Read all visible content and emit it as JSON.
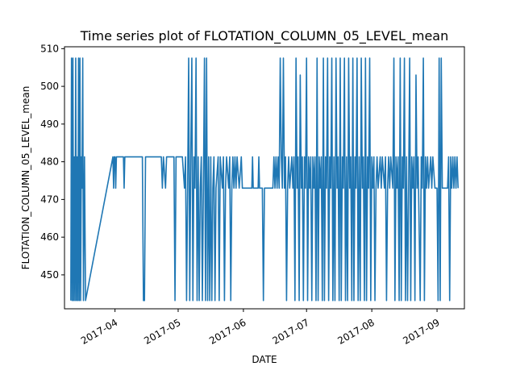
{
  "chart_data": {
    "type": "line",
    "title": "Time series plot of FLOTATION_COLUMN_05_LEVEL_mean",
    "xlabel": "DATE",
    "ylabel": "FLOTATION_COLUMN_05_LEVEL_mean",
    "xlim": [
      "2017-03-08",
      "2017-09-14"
    ],
    "ylim": [
      441,
      510.5
    ],
    "x_tick_labels": [
      "2017-04",
      "2017-05",
      "2017-06",
      "2017-07",
      "2017-08",
      "2017-09"
    ],
    "x_tick_dates": [
      "2017-04-01",
      "2017-05-01",
      "2017-06-01",
      "2017-07-01",
      "2017-08-01",
      "2017-09-01"
    ],
    "y_tick_values": [
      450,
      460,
      470,
      480,
      490,
      500,
      510
    ],
    "grid": false,
    "series": [
      {
        "color": "#1f77b4",
        "points": [
          [
            "2017-03-11",
            443.2
          ],
          [
            "2017-03-11",
            507.5
          ],
          [
            "2017-03-11",
            443.2
          ],
          [
            "2017-03-12",
            507.5
          ],
          [
            "2017-03-12",
            443.2
          ],
          [
            "2017-03-12",
            481.3
          ],
          [
            "2017-03-13",
            443.2
          ],
          [
            "2017-03-13",
            507.5
          ],
          [
            "2017-03-13",
            443.2
          ],
          [
            "2017-03-14",
            481.3
          ],
          [
            "2017-03-14",
            443.2
          ],
          [
            "2017-03-14",
            507.5
          ],
          [
            "2017-03-15",
            443.2
          ],
          [
            "2017-03-15",
            507.5
          ],
          [
            "2017-03-15",
            443.2
          ],
          [
            "2017-03-16",
            481.3
          ],
          [
            "2017-03-16",
            473.0
          ],
          [
            "2017-03-16",
            507.5
          ],
          [
            "2017-03-17",
            443.2
          ],
          [
            "2017-03-17",
            481.3
          ],
          [
            "2017-03-18",
            443.2
          ],
          [
            "2017-03-31",
            481.3
          ],
          [
            "2017-03-31",
            473.0
          ],
          [
            "2017-03-31",
            481.3
          ],
          [
            "2017-04-01",
            481.3
          ],
          [
            "2017-04-01",
            473.0
          ],
          [
            "2017-04-01",
            481.3
          ],
          [
            "2017-04-05",
            481.3
          ],
          [
            "2017-04-05",
            473.0
          ],
          [
            "2017-04-05",
            481.3
          ],
          [
            "2017-04-14",
            481.3
          ],
          [
            "2017-04-14",
            443.2
          ],
          [
            "2017-04-15",
            443.2
          ],
          [
            "2017-04-15",
            481.3
          ],
          [
            "2017-04-23",
            481.3
          ],
          [
            "2017-04-23",
            473.0
          ],
          [
            "2017-04-24",
            481.3
          ],
          [
            "2017-04-25",
            473.0
          ],
          [
            "2017-04-25",
            481.3
          ],
          [
            "2017-04-29",
            481.3
          ],
          [
            "2017-04-29",
            443.2
          ],
          [
            "2017-04-30",
            481.3
          ],
          [
            "2017-05-03",
            481.3
          ],
          [
            "2017-05-04",
            473.0
          ],
          [
            "2017-05-04",
            481.3
          ],
          [
            "2017-05-05",
            443.2
          ],
          [
            "2017-05-05",
            473.0
          ],
          [
            "2017-05-06",
            507.5
          ],
          [
            "2017-05-06",
            443.2
          ],
          [
            "2017-05-07",
            481.3
          ],
          [
            "2017-05-07",
            507.5
          ],
          [
            "2017-05-08",
            443.2
          ],
          [
            "2017-05-08",
            481.3
          ],
          [
            "2017-05-09",
            473.0
          ],
          [
            "2017-05-09",
            507.5
          ],
          [
            "2017-05-10",
            443.2
          ],
          [
            "2017-05-10",
            481.3
          ],
          [
            "2017-05-11",
            443.2
          ],
          [
            "2017-05-11",
            473.0
          ],
          [
            "2017-05-12",
            481.3
          ],
          [
            "2017-05-12",
            443.2
          ],
          [
            "2017-05-13",
            473.0
          ],
          [
            "2017-05-13",
            507.5
          ],
          [
            "2017-05-14",
            443.2
          ],
          [
            "2017-05-14",
            507.5
          ],
          [
            "2017-05-15",
            443.2
          ],
          [
            "2017-05-15",
            481.3
          ],
          [
            "2017-05-16",
            443.2
          ],
          [
            "2017-05-16",
            481.3
          ],
          [
            "2017-05-17",
            443.2
          ],
          [
            "2017-05-17",
            473.0
          ],
          [
            "2017-05-18",
            481.3
          ],
          [
            "2017-05-18",
            443.2
          ],
          [
            "2017-05-19",
            473.0
          ],
          [
            "2017-05-20",
            481.3
          ],
          [
            "2017-05-20",
            443.2
          ],
          [
            "2017-05-21",
            481.3
          ],
          [
            "2017-05-22",
            473.0
          ],
          [
            "2017-05-22",
            481.3
          ],
          [
            "2017-05-23",
            443.2
          ],
          [
            "2017-05-23",
            473.0
          ],
          [
            "2017-05-24",
            481.3
          ],
          [
            "2017-05-25",
            473.0
          ],
          [
            "2017-05-25",
            481.3
          ],
          [
            "2017-05-26",
            443.2
          ],
          [
            "2017-05-26",
            473.0
          ],
          [
            "2017-05-27",
            481.3
          ],
          [
            "2017-05-27",
            473.0
          ],
          [
            "2017-05-28",
            481.3
          ],
          [
            "2017-05-28",
            473.0
          ],
          [
            "2017-05-29",
            481.3
          ],
          [
            "2017-05-30",
            473.0
          ],
          [
            "2017-05-31",
            481.3
          ],
          [
            "2017-05-31",
            473.0
          ],
          [
            "2017-06-05",
            473.0
          ],
          [
            "2017-06-05",
            481.3
          ],
          [
            "2017-06-05",
            473.0
          ],
          [
            "2017-06-08",
            473.0
          ],
          [
            "2017-06-08",
            481.3
          ],
          [
            "2017-06-08",
            473.0
          ],
          [
            "2017-06-10",
            473.0
          ],
          [
            "2017-06-10",
            443.2
          ],
          [
            "2017-06-11",
            473.0
          ],
          [
            "2017-06-15",
            473.0
          ],
          [
            "2017-06-15",
            481.3
          ],
          [
            "2017-06-16",
            473.0
          ],
          [
            "2017-06-16",
            481.3
          ],
          [
            "2017-06-17",
            473.0
          ],
          [
            "2017-06-17",
            481.3
          ],
          [
            "2017-06-18",
            473.0
          ],
          [
            "2017-06-18",
            507.5
          ],
          [
            "2017-06-19",
            481.3
          ],
          [
            "2017-06-19",
            473.0
          ],
          [
            "2017-06-20",
            507.5
          ],
          [
            "2017-06-20",
            473.0
          ],
          [
            "2017-06-21",
            481.3
          ],
          [
            "2017-06-21",
            443.2
          ],
          [
            "2017-06-22",
            473.0
          ],
          [
            "2017-06-22",
            481.3
          ],
          [
            "2017-06-23",
            473.0
          ],
          [
            "2017-06-24",
            481.3
          ],
          [
            "2017-06-24",
            473.0
          ],
          [
            "2017-06-25",
            481.3
          ],
          [
            "2017-06-25",
            443.2
          ],
          [
            "2017-06-26",
            507.5
          ],
          [
            "2017-06-26",
            473.0
          ],
          [
            "2017-06-27",
            481.3
          ],
          [
            "2017-06-27",
            443.2
          ],
          [
            "2017-06-28",
            503.0
          ],
          [
            "2017-06-28",
            473.0
          ],
          [
            "2017-06-29",
            481.3
          ],
          [
            "2017-06-29",
            443.2
          ],
          [
            "2017-06-30",
            481.3
          ],
          [
            "2017-06-30",
            473.0
          ],
          [
            "2017-07-01",
            507.5
          ],
          [
            "2017-07-01",
            443.2
          ],
          [
            "2017-07-02",
            481.3
          ],
          [
            "2017-07-02",
            473.0
          ],
          [
            "2017-07-03",
            481.3
          ],
          [
            "2017-07-03",
            443.2
          ],
          [
            "2017-07-04",
            481.3
          ],
          [
            "2017-07-04",
            473.0
          ],
          [
            "2017-07-05",
            481.3
          ],
          [
            "2017-07-05",
            443.2
          ],
          [
            "2017-07-06",
            507.5
          ],
          [
            "2017-07-06",
            443.2
          ],
          [
            "2017-07-07",
            481.3
          ],
          [
            "2017-07-07",
            473.0
          ],
          [
            "2017-07-08",
            481.3
          ],
          [
            "2017-07-08",
            443.2
          ],
          [
            "2017-07-09",
            507.5
          ],
          [
            "2017-07-09",
            443.2
          ],
          [
            "2017-07-10",
            481.3
          ],
          [
            "2017-07-10",
            473.0
          ],
          [
            "2017-07-11",
            507.5
          ],
          [
            "2017-07-11",
            443.2
          ],
          [
            "2017-07-12",
            481.3
          ],
          [
            "2017-07-12",
            473.0
          ],
          [
            "2017-07-13",
            507.5
          ],
          [
            "2017-07-13",
            443.2
          ],
          [
            "2017-07-14",
            481.3
          ],
          [
            "2017-07-14",
            443.2
          ],
          [
            "2017-07-15",
            507.5
          ],
          [
            "2017-07-15",
            473.0
          ],
          [
            "2017-07-16",
            481.3
          ],
          [
            "2017-07-16",
            443.2
          ],
          [
            "2017-07-17",
            507.5
          ],
          [
            "2017-07-17",
            443.2
          ],
          [
            "2017-07-18",
            481.3
          ],
          [
            "2017-07-18",
            473.0
          ],
          [
            "2017-07-19",
            507.5
          ],
          [
            "2017-07-19",
            443.2
          ],
          [
            "2017-07-20",
            481.3
          ],
          [
            "2017-07-20",
            443.2
          ],
          [
            "2017-07-21",
            507.5
          ],
          [
            "2017-07-21",
            473.0
          ],
          [
            "2017-07-22",
            481.3
          ],
          [
            "2017-07-22",
            443.2
          ],
          [
            "2017-07-23",
            507.5
          ],
          [
            "2017-07-23",
            443.2
          ],
          [
            "2017-07-24",
            481.3
          ],
          [
            "2017-07-24",
            473.0
          ],
          [
            "2017-07-25",
            507.5
          ],
          [
            "2017-07-25",
            443.2
          ],
          [
            "2017-07-26",
            481.3
          ],
          [
            "2017-07-26",
            443.2
          ],
          [
            "2017-07-27",
            507.5
          ],
          [
            "2017-07-27",
            473.0
          ],
          [
            "2017-07-28",
            481.3
          ],
          [
            "2017-07-28",
            443.2
          ],
          [
            "2017-07-29",
            507.5
          ],
          [
            "2017-07-29",
            443.2
          ],
          [
            "2017-07-30",
            481.3
          ],
          [
            "2017-07-30",
            473.0
          ],
          [
            "2017-07-31",
            507.5
          ],
          [
            "2017-07-31",
            443.2
          ],
          [
            "2017-08-01",
            481.3
          ],
          [
            "2017-08-01",
            473.0
          ],
          [
            "2017-08-02",
            481.3
          ],
          [
            "2017-08-02",
            443.2
          ],
          [
            "2017-08-03",
            473.0
          ],
          [
            "2017-08-03",
            481.3
          ],
          [
            "2017-08-04",
            473.0
          ],
          [
            "2017-08-05",
            481.3
          ],
          [
            "2017-08-05",
            473.0
          ],
          [
            "2017-08-06",
            481.3
          ],
          [
            "2017-08-07",
            473.0
          ],
          [
            "2017-08-07",
            481.3
          ],
          [
            "2017-08-08",
            443.2
          ],
          [
            "2017-08-08",
            473.0
          ],
          [
            "2017-08-09",
            481.3
          ],
          [
            "2017-08-09",
            473.0
          ],
          [
            "2017-08-10",
            481.3
          ],
          [
            "2017-08-11",
            473.0
          ],
          [
            "2017-08-11",
            507.5
          ],
          [
            "2017-08-12",
            443.2
          ],
          [
            "2017-08-12",
            481.3
          ],
          [
            "2017-08-13",
            473.0
          ],
          [
            "2017-08-13",
            481.3
          ],
          [
            "2017-08-14",
            443.2
          ],
          [
            "2017-08-14",
            507.5
          ],
          [
            "2017-08-15",
            443.2
          ],
          [
            "2017-08-15",
            481.3
          ],
          [
            "2017-08-16",
            473.0
          ],
          [
            "2017-08-16",
            507.5
          ],
          [
            "2017-08-17",
            443.2
          ],
          [
            "2017-08-17",
            481.3
          ],
          [
            "2017-08-18",
            443.2
          ],
          [
            "2017-08-18",
            473.0
          ],
          [
            "2017-08-19",
            507.5
          ],
          [
            "2017-08-19",
            443.2
          ],
          [
            "2017-08-20",
            481.3
          ],
          [
            "2017-08-20",
            473.0
          ],
          [
            "2017-08-21",
            481.3
          ],
          [
            "2017-08-21",
            443.2
          ],
          [
            "2017-08-22",
            503.0
          ],
          [
            "2017-08-22",
            473.0
          ],
          [
            "2017-08-23",
            481.3
          ],
          [
            "2017-08-24",
            443.2
          ],
          [
            "2017-08-24",
            481.3
          ],
          [
            "2017-08-25",
            473.0
          ],
          [
            "2017-08-25",
            507.5
          ],
          [
            "2017-08-26",
            443.2
          ],
          [
            "2017-08-26",
            481.3
          ],
          [
            "2017-08-27",
            473.0
          ],
          [
            "2017-08-27",
            481.3
          ],
          [
            "2017-08-28",
            473.0
          ],
          [
            "2017-08-29",
            481.3
          ],
          [
            "2017-08-29",
            473.0
          ],
          [
            "2017-08-30",
            481.3
          ],
          [
            "2017-08-31",
            473.0
          ],
          [
            "2017-09-01",
            473.0
          ],
          [
            "2017-09-01",
            443.2
          ],
          [
            "2017-09-02",
            507.5
          ],
          [
            "2017-09-02",
            443.2
          ],
          [
            "2017-09-03",
            507.5
          ],
          [
            "2017-09-03",
            473.0
          ],
          [
            "2017-09-04",
            473.0
          ],
          [
            "2017-09-06",
            473.0
          ],
          [
            "2017-09-06",
            481.3
          ],
          [
            "2017-09-07",
            443.2
          ],
          [
            "2017-09-07",
            481.3
          ],
          [
            "2017-09-08",
            473.0
          ],
          [
            "2017-09-08",
            481.3
          ],
          [
            "2017-09-09",
            473.0
          ],
          [
            "2017-09-09",
            481.3
          ],
          [
            "2017-09-10",
            473.0
          ],
          [
            "2017-09-10",
            481.3
          ],
          [
            "2017-09-11",
            473.0
          ]
        ]
      }
    ]
  }
}
